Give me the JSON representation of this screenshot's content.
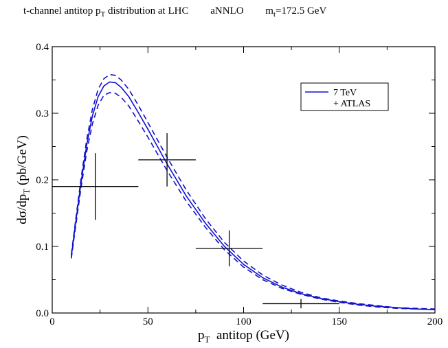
{
  "title": {
    "main": "t-channel antitop p",
    "main_sub": "T",
    "main_rest": " distribution at LHC",
    "order": "aNNLO",
    "mass": "m",
    "mass_sub": "t",
    "mass_rest": "=172.5 GeV"
  },
  "chart_data": {
    "type": "line",
    "xlabel": "p",
    "xlabel_sub": "T",
    "xlabel_rest": "  antitop (GeV)",
    "ylabel": "dσ/dp",
    "ylabel_sub": "T",
    "ylabel_rest": " (pb/GeV)",
    "xlim": [
      0,
      200
    ],
    "ylim": [
      0,
      0.4
    ],
    "xticks": [
      0,
      50,
      100,
      150,
      200
    ],
    "yticks": [
      0.0,
      0.1,
      0.2,
      0.3,
      0.4
    ],
    "xtick_labels": [
      "0",
      "50",
      "100",
      "150",
      "200"
    ],
    "ytick_labels": [
      "0.0",
      "0.1",
      "0.2",
      "0.3",
      "0.4"
    ],
    "legend": {
      "placement": "top-right",
      "entries": [
        "7 TeV",
        "+ ATLAS"
      ]
    },
    "line_color": "#1010d0",
    "series": [
      {
        "name": "7 TeV",
        "style": "solid",
        "x": [
          10,
          12,
          15,
          18,
          21,
          24,
          27,
          30,
          33,
          36,
          40,
          45,
          50,
          55,
          60,
          70,
          80,
          90,
          100,
          110,
          120,
          130,
          140,
          150,
          160,
          170,
          180,
          190,
          200
        ],
        "y": [
          0.085,
          0.13,
          0.195,
          0.252,
          0.296,
          0.325,
          0.341,
          0.347,
          0.346,
          0.339,
          0.325,
          0.301,
          0.276,
          0.25,
          0.224,
          0.176,
          0.135,
          0.1,
          0.073,
          0.053,
          0.039,
          0.029,
          0.022,
          0.017,
          0.013,
          0.01,
          0.008,
          0.006,
          0.005
        ]
      },
      {
        "style": "dashed",
        "x": [
          10,
          12,
          15,
          18,
          21,
          24,
          27,
          30,
          33,
          36,
          40,
          45,
          50,
          55,
          60,
          70,
          80,
          90,
          100,
          110,
          120,
          130,
          140,
          150,
          160,
          170,
          180,
          190,
          200
        ],
        "y": [
          0.088,
          0.134,
          0.201,
          0.26,
          0.306,
          0.336,
          0.352,
          0.358,
          0.357,
          0.35,
          0.336,
          0.312,
          0.286,
          0.26,
          0.234,
          0.185,
          0.142,
          0.106,
          0.078,
          0.057,
          0.042,
          0.031,
          0.023,
          0.018,
          0.014,
          0.011,
          0.008,
          0.007,
          0.006
        ]
      },
      {
        "style": "dashed",
        "x": [
          10,
          12,
          15,
          18,
          21,
          24,
          27,
          30,
          33,
          36,
          40,
          45,
          50,
          55,
          60,
          70,
          80,
          90,
          100,
          110,
          120,
          130,
          140,
          150,
          160,
          170,
          180,
          190,
          200
        ],
        "y": [
          0.082,
          0.125,
          0.187,
          0.242,
          0.284,
          0.312,
          0.327,
          0.331,
          0.33,
          0.324,
          0.311,
          0.288,
          0.264,
          0.239,
          0.214,
          0.168,
          0.129,
          0.095,
          0.069,
          0.05,
          0.037,
          0.028,
          0.021,
          0.016,
          0.012,
          0.009,
          0.007,
          0.006,
          0.005
        ]
      }
    ],
    "data_points": [
      {
        "x": 22.5,
        "y": 0.19,
        "xerr": [
          0,
          45
        ],
        "yerr": [
          0.14,
          0.24
        ]
      },
      {
        "x": 60,
        "y": 0.23,
        "xerr": [
          45,
          75
        ],
        "yerr": [
          0.19,
          0.27
        ]
      },
      {
        "x": 92.5,
        "y": 0.097,
        "xerr": [
          75,
          110
        ],
        "yerr": [
          0.07,
          0.124
        ]
      },
      {
        "x": 130,
        "y": 0.014,
        "xerr": [
          110,
          150
        ],
        "yerr": [
          0.007,
          0.021
        ]
      }
    ]
  }
}
